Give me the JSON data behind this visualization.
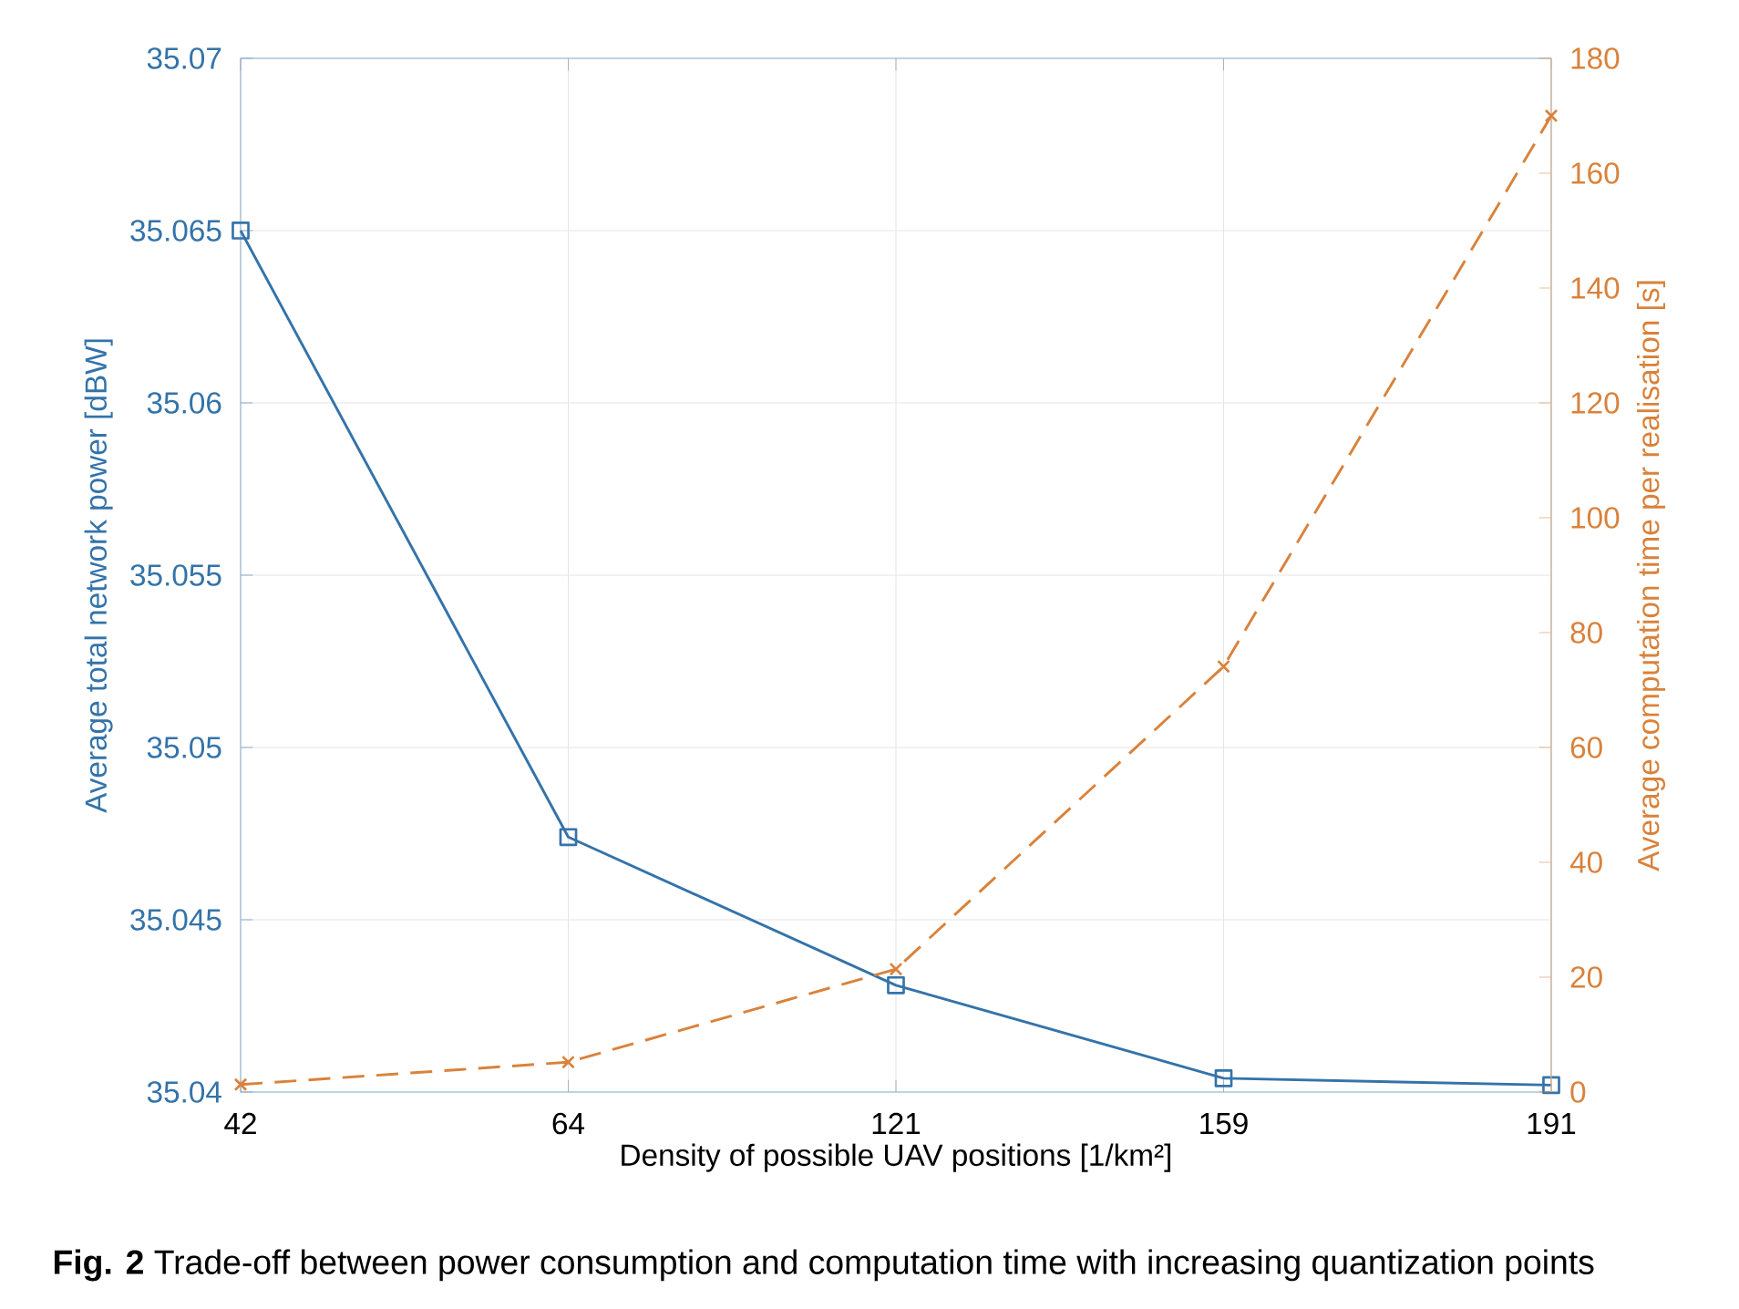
{
  "chart_data": {
    "type": "line",
    "categories": [
      "42",
      "64",
      "121",
      "159",
      "191"
    ],
    "xlabel": "Density of possible UAV positions [1/km²]",
    "ylabel": "Average total network power [dBW]",
    "y2label": "Average computation time per realisation [s]",
    "ylim": [
      35.04,
      35.07
    ],
    "yticks": [
      35.04,
      35.045,
      35.05,
      35.055,
      35.06,
      35.065,
      35.07
    ],
    "y2lim": [
      0,
      180
    ],
    "y2ticks": [
      0,
      20,
      40,
      60,
      80,
      100,
      120,
      140,
      160,
      180
    ],
    "grid": true,
    "series": [
      {
        "color": "#3473a9",
        "values": [
          35.065,
          35.0474,
          35.0431,
          35.0404,
          35.0402
        ],
        "marker": "square",
        "line_style": "solid"
      },
      {
        "color": "#d9823b",
        "values": [
          1.3,
          5.2,
          21.4,
          74.1,
          170
        ],
        "marker": "cross",
        "line_style": "dashed",
        "axis": "y2"
      }
    ],
    "annotations": [
      "**Fig. 2** Trade-off between power consumption and computation time with increasing quantization points"
    ]
  }
}
